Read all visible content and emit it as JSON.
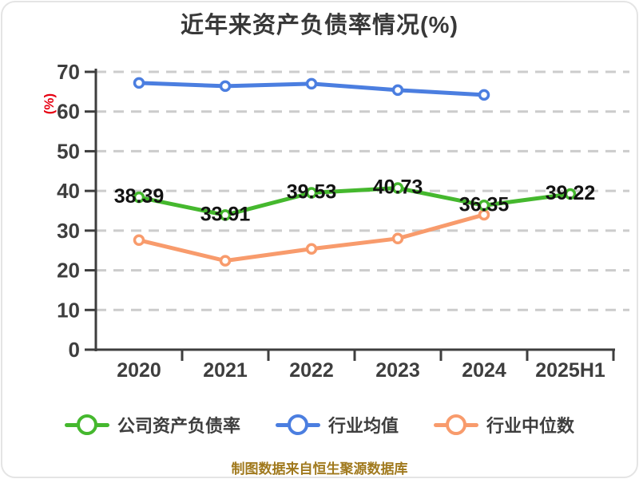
{
  "page": {
    "title": "近年来资产负债率情况(%)",
    "footer": "制图数据来自恒生聚源数据库"
  },
  "chart_data": {
    "type": "line",
    "title": "近年来资产负债率情况(%)",
    "ylabel": "(%)",
    "ylabel_color": "#e60012",
    "categories": [
      "2020",
      "2021",
      "2022",
      "2023",
      "2024",
      "2025H1"
    ],
    "ylim": [
      0,
      70
    ],
    "yticks": [
      0,
      10,
      20,
      30,
      40,
      50,
      60,
      70
    ],
    "grid": "horizontal-dashed",
    "grid_color": "#cccccc",
    "axis_color": "#3e3e3e",
    "data_label_color": "#121212",
    "legend_position": "bottom",
    "series": [
      {
        "name": "公司资产负债率",
        "color": "#45b82e",
        "values": [
          38.39,
          33.91,
          39.53,
          40.73,
          36.35,
          39.22
        ],
        "show_labels": true
      },
      {
        "name": "行业均值",
        "color": "#4b7ee0",
        "values": [
          67.2,
          66.4,
          67.0,
          65.4,
          64.2,
          null
        ],
        "show_labels": false
      },
      {
        "name": "行业中位数",
        "color": "#f89b6c",
        "values": [
          27.6,
          22.4,
          25.4,
          28.0,
          34.0,
          null
        ],
        "show_labels": false
      }
    ],
    "footer": "制图数据来自恒生聚源数据库",
    "footer_color": "#a0791d"
  }
}
